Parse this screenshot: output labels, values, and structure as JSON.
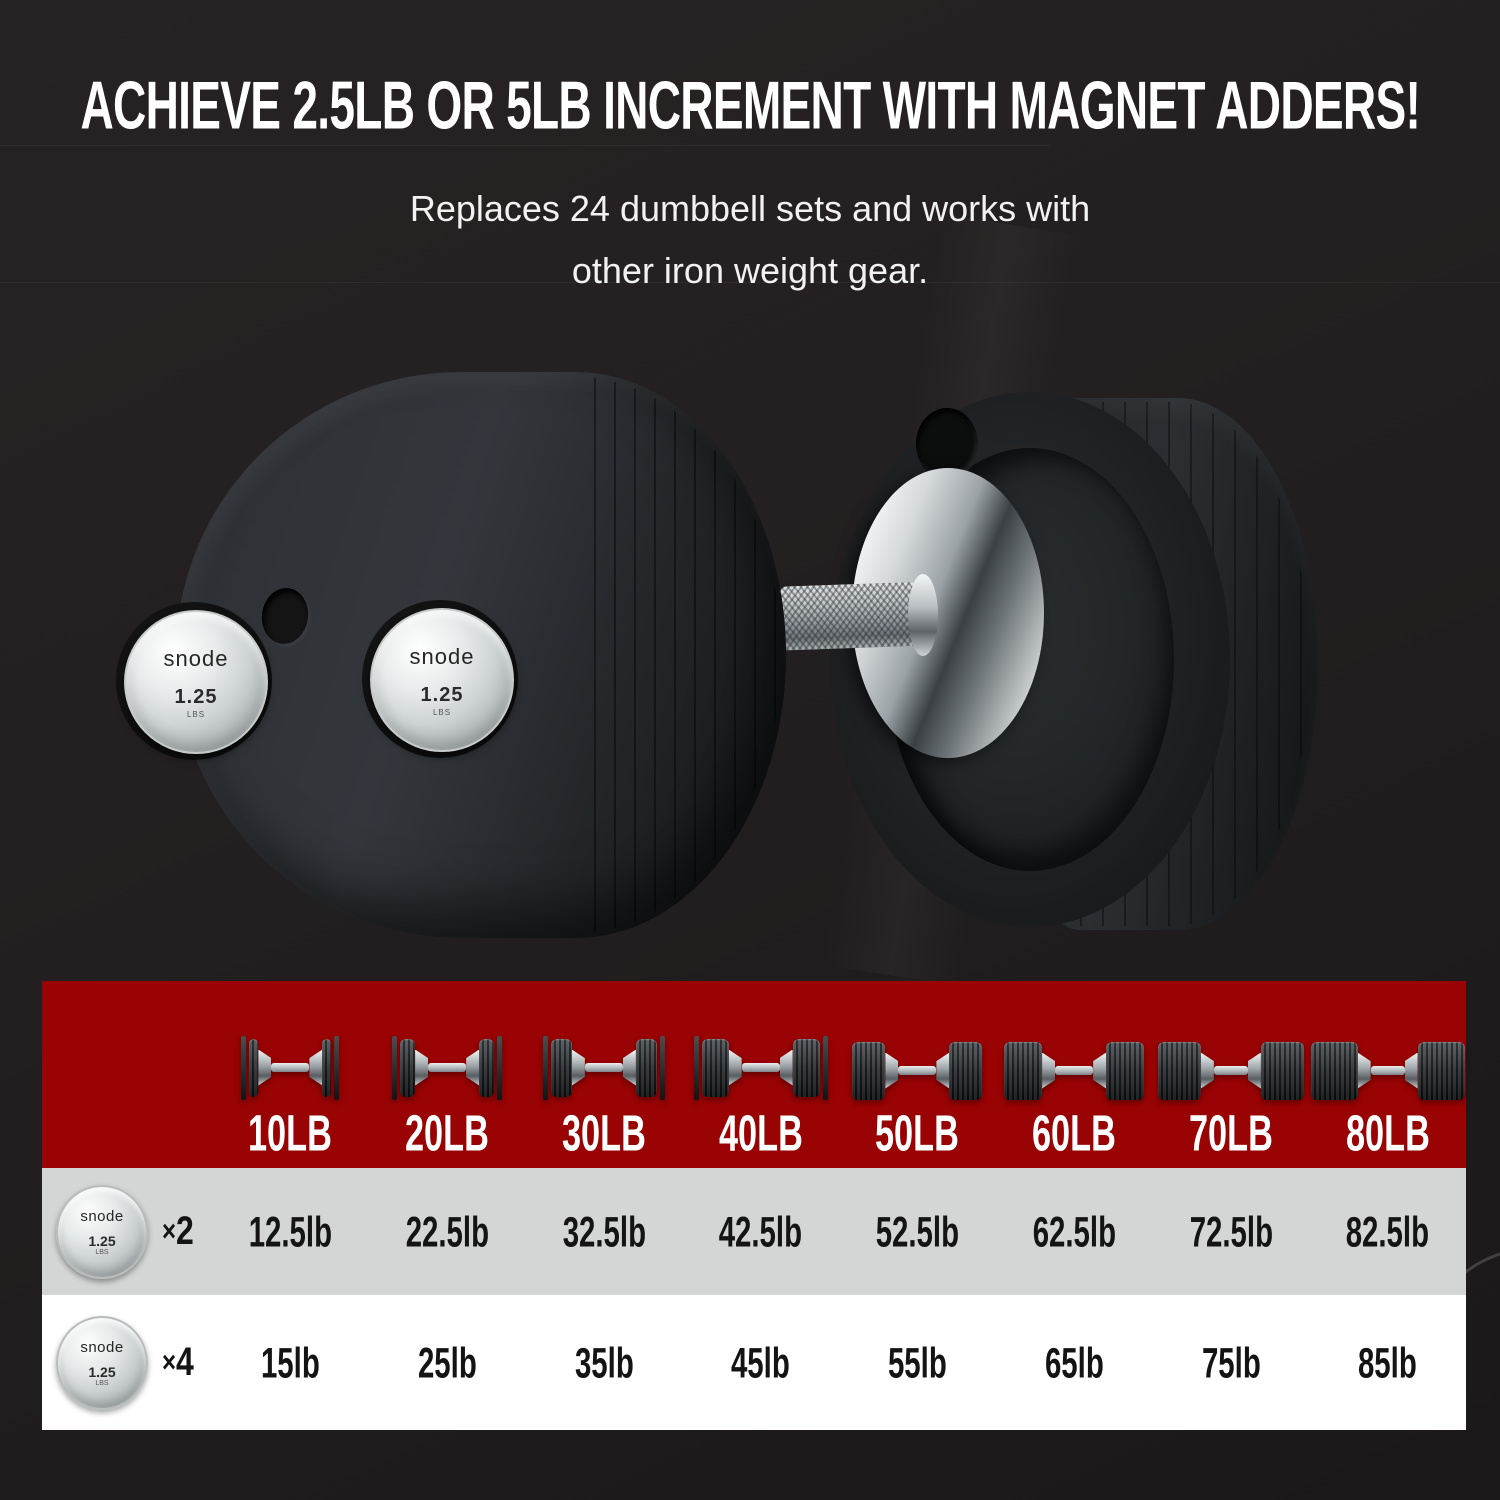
{
  "header": {
    "headline": "ACHIEVE 2.5LB OR 5LB INCREMENT WITH MAGNET ADDERS!",
    "sub_line1": "Replaces 24 dumbbell sets and works with",
    "sub_line2": "other iron weight gear."
  },
  "magnet_disc": {
    "brand": "snode",
    "weight": "1.25",
    "unit": "LBS"
  },
  "table": {
    "columns": [
      {
        "label": "10LB"
      },
      {
        "label": "20LB"
      },
      {
        "label": "30LB"
      },
      {
        "label": "40LB"
      },
      {
        "label": "50LB"
      },
      {
        "label": "60LB"
      },
      {
        "label": "70LB"
      },
      {
        "label": "80LB"
      }
    ],
    "rows": [
      {
        "mult_sign": "×",
        "mult_value": "2",
        "values": [
          "12.5lb",
          "22.5lb",
          "32.5lb",
          "42.5lb",
          "52.5lb",
          "62.5lb",
          "72.5lb",
          "82.5lb"
        ]
      },
      {
        "mult_sign": "×",
        "mult_value": "4",
        "values": [
          "15lb",
          "25lb",
          "35lb",
          "45lb",
          "55lb",
          "65lb",
          "75lb",
          "85lb"
        ]
      }
    ]
  },
  "colors": {
    "accent_red": "#9A0303",
    "row_gray": "#D3D6D5",
    "row_white": "#FFFFFF",
    "background_dark": "#232021",
    "headline_text": "#FFFFFF",
    "table_text": "#141414"
  }
}
